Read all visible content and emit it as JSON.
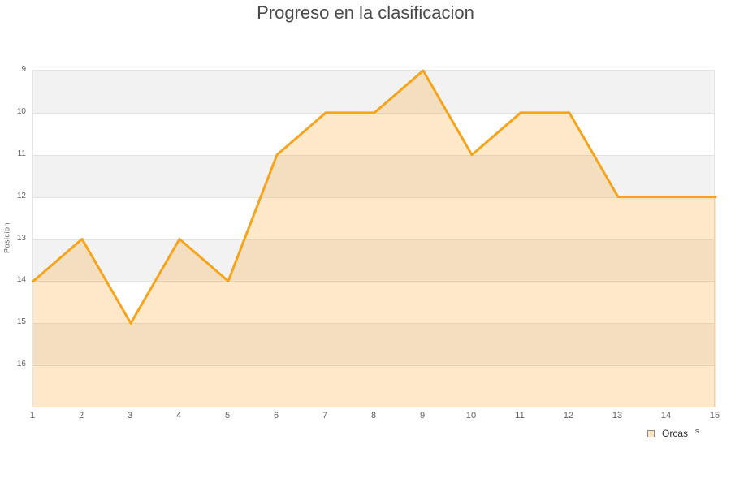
{
  "title": "Progreso en la clasificacion",
  "chart_data": {
    "type": "area",
    "title": "Progreso en la clasificacion",
    "xlabel": "",
    "ylabel": "Posicion",
    "x": [
      1,
      2,
      3,
      4,
      5,
      6,
      7,
      8,
      9,
      10,
      11,
      12,
      13,
      14,
      15
    ],
    "series": [
      {
        "name": "Orcas",
        "values": [
          14,
          13,
          15,
          13,
          14,
          11,
          10,
          10,
          9,
          11,
          10,
          10,
          12,
          12,
          12
        ]
      }
    ],
    "xticks": [
      "1",
      "2",
      "3",
      "4",
      "5",
      "6",
      "7",
      "8",
      "9",
      "10",
      "11",
      "12",
      "13",
      "14",
      "15"
    ],
    "yticks": [
      "9",
      "10",
      "11",
      "12",
      "13",
      "14",
      "15",
      "16"
    ],
    "ylim": [
      9,
      17
    ],
    "y_inverted": true,
    "grid": "horizontal",
    "alternating_bands": true,
    "legend_position": "bottom-right"
  },
  "legend": {
    "label": "Orcas",
    "suffix": "s"
  },
  "colors": {
    "line": "#f5a41c",
    "fill": "#f5a41c",
    "fill_opacity": "0.24",
    "band": "#f2f2f2",
    "gridline": "#e2e2e2",
    "title_text": "#4a4a4a",
    "tick_text": "#606060",
    "legend_swatch_fill": "#fbe3bb",
    "legend_swatch_border": "#8c8c8c"
  }
}
